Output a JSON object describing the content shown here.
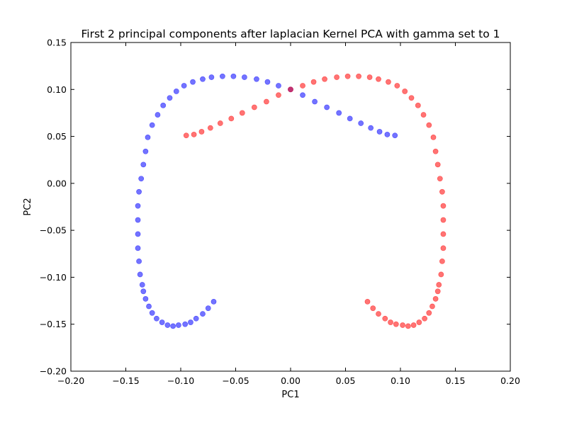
{
  "chart_data": {
    "type": "scatter",
    "title": "First 2 principal components after laplacian Kernel PCA with gamma set to 1",
    "xlabel": "PC1",
    "ylabel": "PC2",
    "xlim": [
      -0.2,
      0.2
    ],
    "ylim": [
      -0.2,
      0.15
    ],
    "xticks": [
      -0.2,
      -0.15,
      -0.1,
      -0.05,
      0.0,
      0.05,
      0.1,
      0.15,
      0.2
    ],
    "yticks": [
      -0.2,
      -0.15,
      -0.1,
      -0.05,
      0.0,
      0.05,
      0.1,
      0.15
    ],
    "xtick_labels": [
      "−0.20",
      "−0.15",
      "−0.10",
      "−0.05",
      "0.00",
      "0.05",
      "0.10",
      "0.15",
      "0.20"
    ],
    "ytick_labels": [
      "−0.20",
      "−0.15",
      "−0.10",
      "−0.05",
      "0.00",
      "0.05",
      "0.10",
      "0.15"
    ],
    "grid": false,
    "series": [
      {
        "color": "#0000ff",
        "points": [
          [
            -0.07,
            -0.126
          ],
          [
            -0.075,
            -0.133
          ],
          [
            -0.08,
            -0.139
          ],
          [
            -0.086,
            -0.144
          ],
          [
            -0.091,
            -0.148
          ],
          [
            -0.096,
            -0.15
          ],
          [
            -0.102,
            -0.151
          ],
          [
            -0.107,
            -0.152
          ],
          [
            -0.112,
            -0.151
          ],
          [
            -0.117,
            -0.148
          ],
          [
            -0.122,
            -0.144
          ],
          [
            -0.126,
            -0.138
          ],
          [
            -0.129,
            -0.131
          ],
          [
            -0.132,
            -0.123
          ],
          [
            -0.134,
            -0.115
          ],
          [
            -0.135,
            -0.108
          ],
          [
            -0.137,
            -0.097
          ],
          [
            -0.138,
            -0.083
          ],
          [
            -0.139,
            -0.069
          ],
          [
            -0.139,
            -0.054
          ],
          [
            -0.139,
            -0.039
          ],
          [
            -0.139,
            -0.024
          ],
          [
            -0.138,
            -0.009
          ],
          [
            -0.136,
            0.005
          ],
          [
            -0.134,
            0.02
          ],
          [
            -0.132,
            0.034
          ],
          [
            -0.13,
            0.049
          ],
          [
            -0.126,
            0.062
          ],
          [
            -0.121,
            0.073
          ],
          [
            -0.116,
            0.083
          ],
          [
            -0.11,
            0.091
          ],
          [
            -0.104,
            0.098
          ],
          [
            -0.097,
            0.104
          ],
          [
            -0.089,
            0.108
          ],
          [
            -0.08,
            0.111
          ],
          [
            -0.072,
            0.113
          ],
          [
            -0.062,
            0.114
          ],
          [
            -0.052,
            0.114
          ],
          [
            -0.042,
            0.113
          ],
          [
            -0.031,
            0.111
          ],
          [
            -0.021,
            0.108
          ],
          [
            -0.011,
            0.104
          ],
          [
            0.0,
            0.1
          ],
          [
            0.011,
            0.094
          ],
          [
            0.022,
            0.087
          ],
          [
            0.033,
            0.081
          ],
          [
            0.044,
            0.075
          ],
          [
            0.054,
            0.069
          ],
          [
            0.064,
            0.064
          ],
          [
            0.073,
            0.059
          ],
          [
            0.081,
            0.055
          ],
          [
            0.088,
            0.052
          ],
          [
            0.095,
            0.051
          ]
        ]
      },
      {
        "color": "#ff0000",
        "points": [
          [
            -0.095,
            0.051
          ],
          [
            -0.088,
            0.052
          ],
          [
            -0.081,
            0.055
          ],
          [
            -0.073,
            0.059
          ],
          [
            -0.064,
            0.064
          ],
          [
            -0.054,
            0.069
          ],
          [
            -0.044,
            0.075
          ],
          [
            -0.033,
            0.081
          ],
          [
            -0.022,
            0.087
          ],
          [
            -0.011,
            0.094
          ],
          [
            0.0,
            0.1
          ],
          [
            0.011,
            0.104
          ],
          [
            0.021,
            0.108
          ],
          [
            0.031,
            0.111
          ],
          [
            0.042,
            0.113
          ],
          [
            0.052,
            0.114
          ],
          [
            0.062,
            0.114
          ],
          [
            0.072,
            0.113
          ],
          [
            0.08,
            0.111
          ],
          [
            0.089,
            0.108
          ],
          [
            0.097,
            0.104
          ],
          [
            0.104,
            0.098
          ],
          [
            0.11,
            0.091
          ],
          [
            0.116,
            0.083
          ],
          [
            0.121,
            0.073
          ],
          [
            0.126,
            0.062
          ],
          [
            0.13,
            0.049
          ],
          [
            0.132,
            0.034
          ],
          [
            0.134,
            0.02
          ],
          [
            0.136,
            0.005
          ],
          [
            0.138,
            -0.009
          ],
          [
            0.139,
            -0.024
          ],
          [
            0.139,
            -0.039
          ],
          [
            0.139,
            -0.054
          ],
          [
            0.139,
            -0.069
          ],
          [
            0.138,
            -0.083
          ],
          [
            0.137,
            -0.097
          ],
          [
            0.135,
            -0.108
          ],
          [
            0.134,
            -0.115
          ],
          [
            0.132,
            -0.123
          ],
          [
            0.129,
            -0.131
          ],
          [
            0.126,
            -0.138
          ],
          [
            0.122,
            -0.144
          ],
          [
            0.117,
            -0.148
          ],
          [
            0.112,
            -0.151
          ],
          [
            0.107,
            -0.152
          ],
          [
            0.102,
            -0.151
          ],
          [
            0.096,
            -0.15
          ],
          [
            0.091,
            -0.148
          ],
          [
            0.086,
            -0.144
          ],
          [
            0.08,
            -0.139
          ],
          [
            0.075,
            -0.133
          ],
          [
            0.07,
            -0.126
          ]
        ]
      }
    ]
  }
}
